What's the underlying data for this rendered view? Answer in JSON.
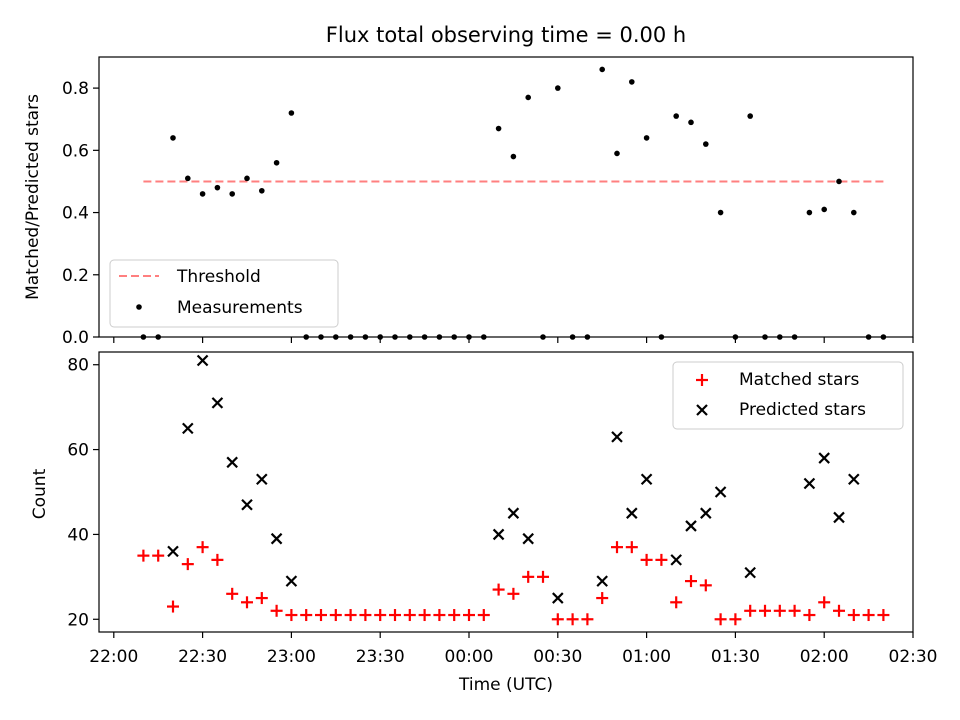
{
  "chart_data": [
    {
      "type": "scatter",
      "title": "Flux total observing time = 0.00 h",
      "xlabel": "",
      "ylabel": "Matched/Predicted stars",
      "xlim": [
        "21:55",
        "02:30"
      ],
      "ylim": [
        0.0,
        0.9
      ],
      "yticks": [
        "0.0",
        "0.2",
        "0.4",
        "0.6",
        "0.8"
      ],
      "legend_position": "lower-left",
      "threshold": {
        "name": "Threshold",
        "value": 0.5,
        "x_start": "22:10",
        "x_end": "02:20",
        "color": "#ff7f7f",
        "style": "dashed"
      },
      "series": [
        {
          "name": "Measurements",
          "color": "#000000",
          "marker": "dot",
          "x": [
            "22:10",
            "22:15",
            "22:20",
            "22:25",
            "22:30",
            "22:35",
            "22:40",
            "22:45",
            "22:50",
            "22:55",
            "23:00",
            "23:05",
            "23:10",
            "23:15",
            "23:20",
            "23:25",
            "23:30",
            "23:35",
            "23:40",
            "23:45",
            "23:50",
            "23:55",
            "00:00",
            "00:05",
            "00:10",
            "00:15",
            "00:20",
            "00:25",
            "00:30",
            "00:35",
            "00:40",
            "00:45",
            "00:50",
            "00:55",
            "01:00",
            "01:05",
            "01:10",
            "01:15",
            "01:20",
            "01:25",
            "01:30",
            "01:35",
            "01:40",
            "01:45",
            "01:50",
            "01:55",
            "02:00",
            "02:05",
            "02:10",
            "02:15",
            "02:20"
          ],
          "y": [
            0.0,
            0.0,
            0.64,
            0.51,
            0.46,
            0.48,
            0.46,
            0.51,
            0.47,
            0.56,
            0.72,
            0.0,
            0.0,
            0.0,
            0.0,
            0.0,
            0.0,
            0.0,
            0.0,
            0.0,
            0.0,
            0.0,
            0.0,
            0.0,
            0.67,
            0.58,
            0.77,
            0.0,
            0.8,
            0.0,
            0.0,
            0.86,
            0.59,
            0.82,
            0.64,
            0.0,
            0.71,
            0.69,
            0.62,
            0.4,
            0.0,
            0.71,
            0.0,
            0.0,
            0.0,
            0.4,
            0.41,
            0.5,
            0.4,
            0.0,
            0.0
          ]
        }
      ]
    },
    {
      "type": "scatter",
      "title": "",
      "xlabel": "Time (UTC)",
      "ylabel": "Count",
      "xlim": [
        "21:55",
        "02:30"
      ],
      "ylim": [
        17,
        83
      ],
      "yticks": [
        "20",
        "40",
        "60",
        "80"
      ],
      "xticks": [
        "22:00",
        "22:30",
        "23:00",
        "23:30",
        "00:00",
        "00:30",
        "01:00",
        "01:30",
        "02:00",
        "02:30"
      ],
      "legend_position": "upper-right",
      "series": [
        {
          "name": "Matched stars",
          "color": "#ff0000",
          "marker": "plus",
          "x": [
            "22:10",
            "22:15",
            "22:20",
            "22:25",
            "22:30",
            "22:35",
            "22:40",
            "22:45",
            "22:50",
            "22:55",
            "23:00",
            "23:05",
            "23:10",
            "23:15",
            "23:20",
            "23:25",
            "23:30",
            "23:35",
            "23:40",
            "23:45",
            "23:50",
            "23:55",
            "00:00",
            "00:05",
            "00:10",
            "00:15",
            "00:20",
            "00:25",
            "00:30",
            "00:35",
            "00:40",
            "00:45",
            "00:50",
            "00:55",
            "01:00",
            "01:05",
            "01:10",
            "01:15",
            "01:20",
            "01:25",
            "01:30",
            "01:35",
            "01:40",
            "01:45",
            "01:50",
            "01:55",
            "02:00",
            "02:05",
            "02:10",
            "02:15",
            "02:20"
          ],
          "y": [
            35,
            35,
            23,
            33,
            37,
            34,
            26,
            24,
            25,
            22,
            21,
            21,
            21,
            21,
            21,
            21,
            21,
            21,
            21,
            21,
            21,
            21,
            21,
            21,
            27,
            26,
            30,
            30,
            20,
            20,
            20,
            25,
            37,
            37,
            34,
            34,
            24,
            29,
            28,
            20,
            20,
            22,
            22,
            22,
            22,
            21,
            24,
            22,
            21,
            21,
            21
          ]
        },
        {
          "name": "Predicted stars",
          "color": "#000000",
          "marker": "x",
          "x": [
            "22:20",
            "22:25",
            "22:30",
            "22:35",
            "22:40",
            "22:45",
            "22:50",
            "22:55",
            "23:00",
            "00:10",
            "00:15",
            "00:20",
            "00:30",
            "00:45",
            "00:50",
            "00:55",
            "01:00",
            "01:10",
            "01:15",
            "01:20",
            "01:25",
            "01:35",
            "01:55",
            "02:00",
            "02:05",
            "02:10"
          ],
          "y": [
            36,
            65,
            81,
            71,
            57,
            47,
            53,
            39,
            29,
            40,
            45,
            39,
            25,
            29,
            63,
            45,
            53,
            34,
            42,
            45,
            50,
            31,
            52,
            58,
            44,
            53
          ]
        }
      ]
    }
  ]
}
